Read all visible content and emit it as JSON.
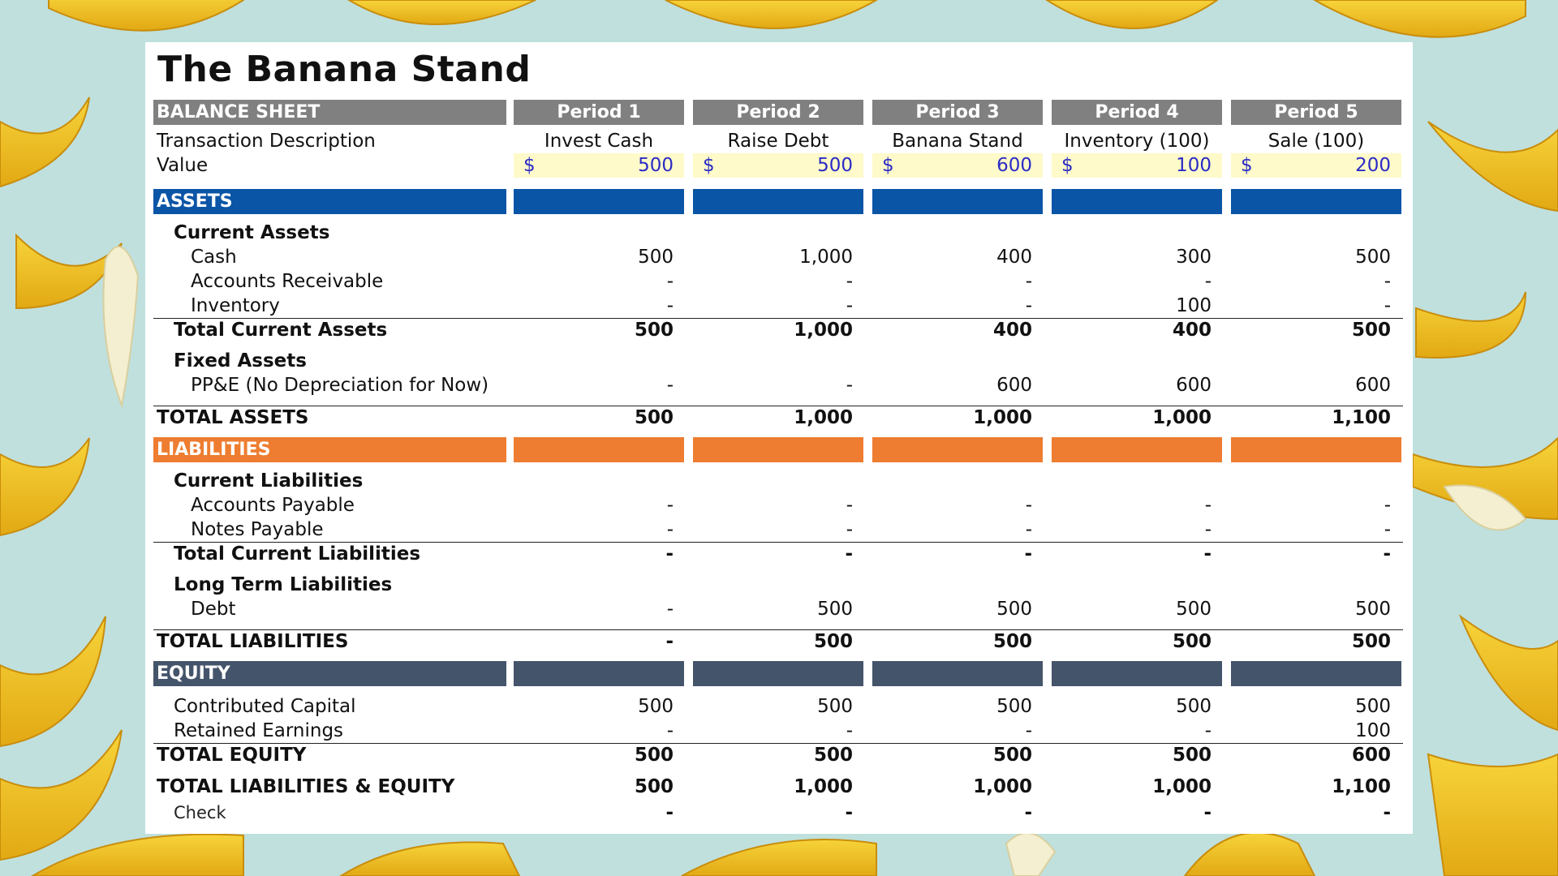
{
  "title": "The Banana Stand",
  "colors": {
    "background": "#bfe0dd",
    "grey_band": "#808080",
    "assets_band": "#0b55a6",
    "liabilities_band": "#ee7d31",
    "equity_band": "#44546a",
    "value_fill": "#fefac9",
    "value_text": "#2b2bc7"
  },
  "header": {
    "label": "BALANCE SHEET",
    "periods": [
      "Period 1",
      "Period 2",
      "Period 3",
      "Period 4",
      "Period 5"
    ]
  },
  "transaction": {
    "label": "Transaction Description",
    "values": [
      "Invest Cash",
      "Raise Debt",
      "Banana Stand",
      "Inventory (100)",
      "Sale (100)"
    ]
  },
  "value_row": {
    "label": "Value",
    "currency": "$",
    "values": [
      "500",
      "500",
      "600",
      "100",
      "200"
    ]
  },
  "assets": {
    "label": "ASSETS",
    "current_label": "Current Assets",
    "cash": {
      "label": "Cash",
      "values": [
        "500",
        "1,000",
        "400",
        "300",
        "500"
      ]
    },
    "receivable": {
      "label": "Accounts Receivable",
      "values": [
        "-",
        "-",
        "-",
        "-",
        "-"
      ]
    },
    "inventory": {
      "label": "Inventory",
      "values": [
        "-",
        "-",
        "-",
        "100",
        "-"
      ]
    },
    "total_current": {
      "label": "Total Current Assets",
      "values": [
        "500",
        "1,000",
        "400",
        "400",
        "500"
      ]
    },
    "fixed_label": "Fixed Assets",
    "ppe": {
      "label": "PP&E (No Depreciation for Now)",
      "values": [
        "-",
        "-",
        "600",
        "600",
        "600"
      ]
    },
    "total": {
      "label": "TOTAL ASSETS",
      "values": [
        "500",
        "1,000",
        "1,000",
        "1,000",
        "1,100"
      ]
    }
  },
  "liabilities": {
    "label": "LIABILITIES",
    "current_label": "Current Liabilities",
    "payable": {
      "label": "Accounts Payable",
      "values": [
        "-",
        "-",
        "-",
        "-",
        "-"
      ]
    },
    "notes": {
      "label": "Notes Payable",
      "values": [
        "-",
        "-",
        "-",
        "-",
        "-"
      ]
    },
    "total_current": {
      "label": "Total Current Liabilities",
      "values": [
        "-",
        "-",
        "-",
        "-",
        "-"
      ]
    },
    "long_label": "Long Term Liabilities",
    "debt": {
      "label": "Debt",
      "values": [
        "-",
        "500",
        "500",
        "500",
        "500"
      ]
    },
    "total": {
      "label": "TOTAL LIABILITIES",
      "values": [
        "-",
        "500",
        "500",
        "500",
        "500"
      ]
    }
  },
  "equity": {
    "label": "EQUITY",
    "contributed": {
      "label": "Contributed Capital",
      "values": [
        "500",
        "500",
        "500",
        "500",
        "500"
      ]
    },
    "retained": {
      "label": "Retained Earnings",
      "values": [
        "-",
        "-",
        "-",
        "-",
        "100"
      ]
    },
    "total": {
      "label": "TOTAL EQUITY",
      "values": [
        "500",
        "500",
        "500",
        "500",
        "600"
      ]
    }
  },
  "total_le": {
    "label": "TOTAL LIABILITIES & EQUITY",
    "values": [
      "500",
      "1,000",
      "1,000",
      "1,000",
      "1,100"
    ]
  },
  "check": {
    "label": "Check",
    "values": [
      "-",
      "-",
      "-",
      "-",
      "-"
    ]
  }
}
